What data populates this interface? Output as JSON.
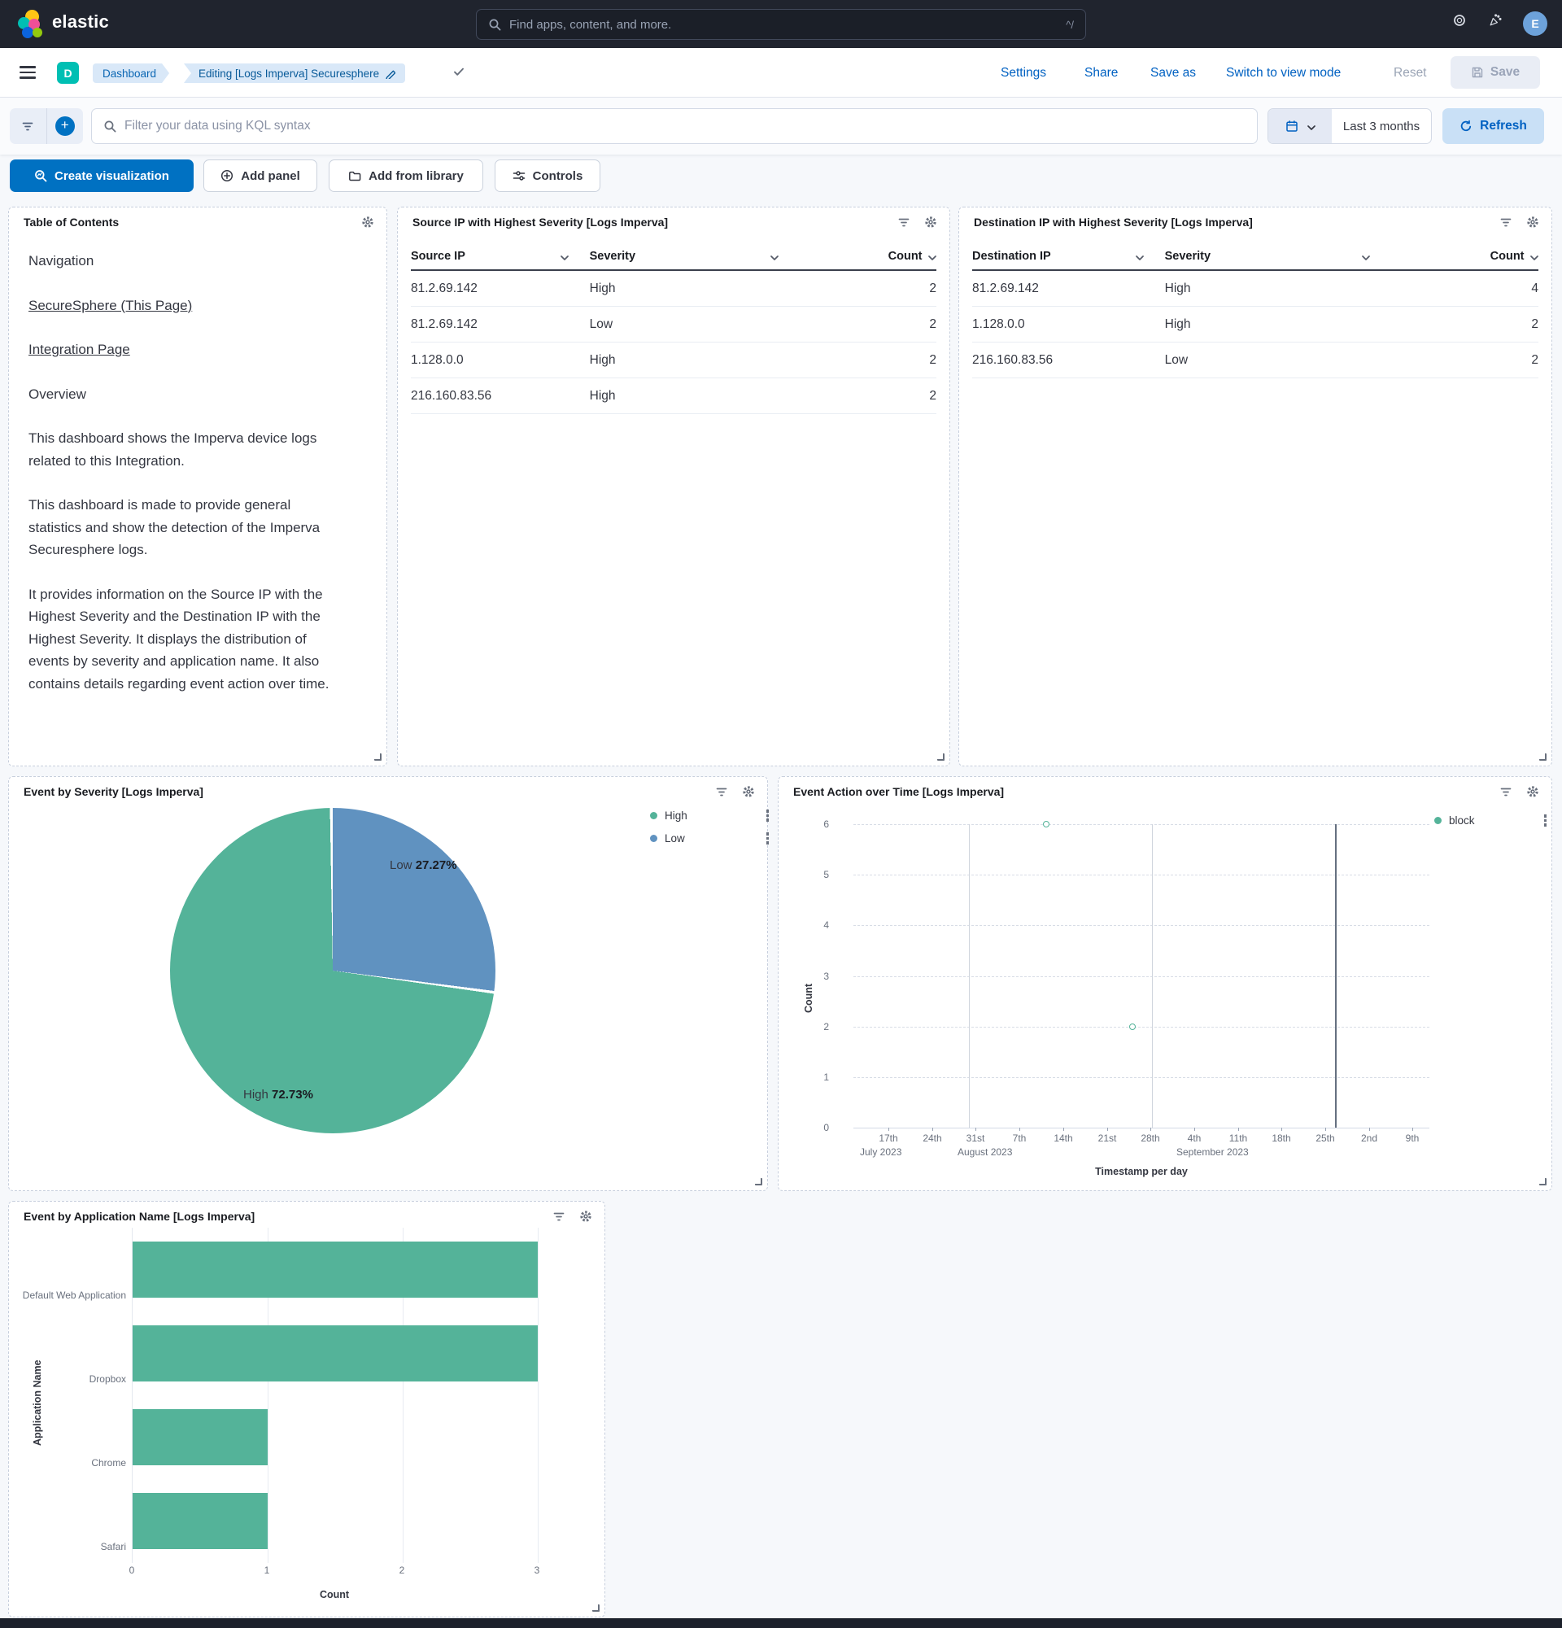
{
  "colors": {
    "accent_blue": "#0071c2",
    "link_blue": "#0061c2",
    "teal_badge": "#00bfb3",
    "vis_green": "#54b399",
    "vis_blue": "#6092c0",
    "header_dark": "#20242e",
    "panel_border": "#c7cfdd",
    "text_dark": "#343741"
  },
  "header": {
    "brand": "elastic",
    "search_placeholder": "Find apps, content, and more.",
    "search_shortcut": "^/",
    "avatar_initial": "E"
  },
  "breadcrumb_bar": {
    "space_badge": "D",
    "crumb_root": "Dashboard",
    "crumb_current": "Editing [Logs Imperva] Securesphere",
    "actions": {
      "settings": "Settings",
      "share": "Share",
      "save_as": "Save as",
      "switch_view": "Switch to view mode",
      "reset": "Reset",
      "save": "Save"
    }
  },
  "query_bar": {
    "filter_placeholder": "Filter your data using KQL syntax",
    "time_range": "Last 3 months",
    "refresh_label": "Refresh"
  },
  "toolbar": {
    "create_visualization": "Create visualization",
    "add_panel": "Add panel",
    "add_from_library": "Add from library",
    "controls": "Controls"
  },
  "toc_panel": {
    "title": "Table of Contents",
    "nav_heading": "Navigation",
    "link_securesphere": "SecureSphere (This Page)",
    "link_integration": "Integration Page",
    "overview_heading": "Overview",
    "para1": "This dashboard shows the Imperva device logs related to this Integration.",
    "para2": "This dashboard is made to provide general statistics and show the detection of the Imperva Securesphere logs.",
    "para3": "It provides information on the Source IP with the Highest Severity and the Destination IP with the Highest Severity. It displays the distribution of events by severity and application name. It also contains details regarding event action over time."
  },
  "tables": {
    "source": {
      "title": "Source IP with Highest Severity [Logs Imperva]",
      "columns": [
        "Source IP",
        "Severity",
        "Count"
      ],
      "rows": [
        {
          "ip": "81.2.69.142",
          "severity": "High",
          "count": "2"
        },
        {
          "ip": "81.2.69.142",
          "severity": "Low",
          "count": "2"
        },
        {
          "ip": "1.128.0.0",
          "severity": "High",
          "count": "2"
        },
        {
          "ip": "216.160.83.56",
          "severity": "High",
          "count": "2"
        }
      ]
    },
    "destination": {
      "title": "Destination IP with Highest Severity [Logs Imperva]",
      "columns": [
        "Destination IP",
        "Severity",
        "Count"
      ],
      "rows": [
        {
          "ip": "81.2.69.142",
          "severity": "High",
          "count": "4"
        },
        {
          "ip": "1.128.0.0",
          "severity": "High",
          "count": "2"
        },
        {
          "ip": "216.160.83.56",
          "severity": "Low",
          "count": "2"
        }
      ]
    }
  },
  "chart_data": [
    {
      "type": "pie",
      "title": "Event by Severity [Logs Imperva]",
      "legend_position": "right",
      "start_angle": "top, clockwise, Low first",
      "slices": [
        {
          "label": "High",
          "value": 72.73,
          "pct_label": "72.73%",
          "color": "#54b399"
        },
        {
          "label": "Low",
          "value": 27.27,
          "pct_label": "27.27%",
          "color": "#6092c0"
        }
      ]
    },
    {
      "type": "scatter",
      "title": "Event Action over Time [Logs Imperva]",
      "xlabel": "Timestamp per day",
      "ylabel": "Count",
      "ylim": [
        0,
        6
      ],
      "y_ticks": [
        6,
        5,
        4,
        3,
        2,
        1,
        0
      ],
      "x_ticks": [
        "17th",
        "24th",
        "31st",
        "7th",
        "14th",
        "21st",
        "28th",
        "4th",
        "11th",
        "18th",
        "25th",
        "2nd",
        "9th"
      ],
      "month_labels": [
        "July 2023",
        "August 2023",
        "September 2023"
      ],
      "grid": "horizontal dashed",
      "legend": [
        "block"
      ],
      "series": [
        {
          "name": "block",
          "color": "#54b399",
          "points": [
            {
              "date": "2023-08-10",
              "count": 6,
              "x_frac": 0.335
            },
            {
              "date": "2023-08-25",
              "count": 2,
              "x_frac": 0.485
            }
          ]
        }
      ]
    },
    {
      "type": "bar",
      "title": "Event by Application Name [Logs Imperva]",
      "orientation": "horizontal",
      "categories": [
        "Default Web Application",
        "Dropbox",
        "Chrome",
        "Safari"
      ],
      "values": [
        3,
        3,
        1,
        1
      ],
      "xlabel": "Count",
      "ylabel": "Application Name",
      "xlim": [
        0,
        3
      ],
      "x_ticks": [
        0,
        1,
        2,
        3
      ],
      "color": "#54b399"
    }
  ]
}
